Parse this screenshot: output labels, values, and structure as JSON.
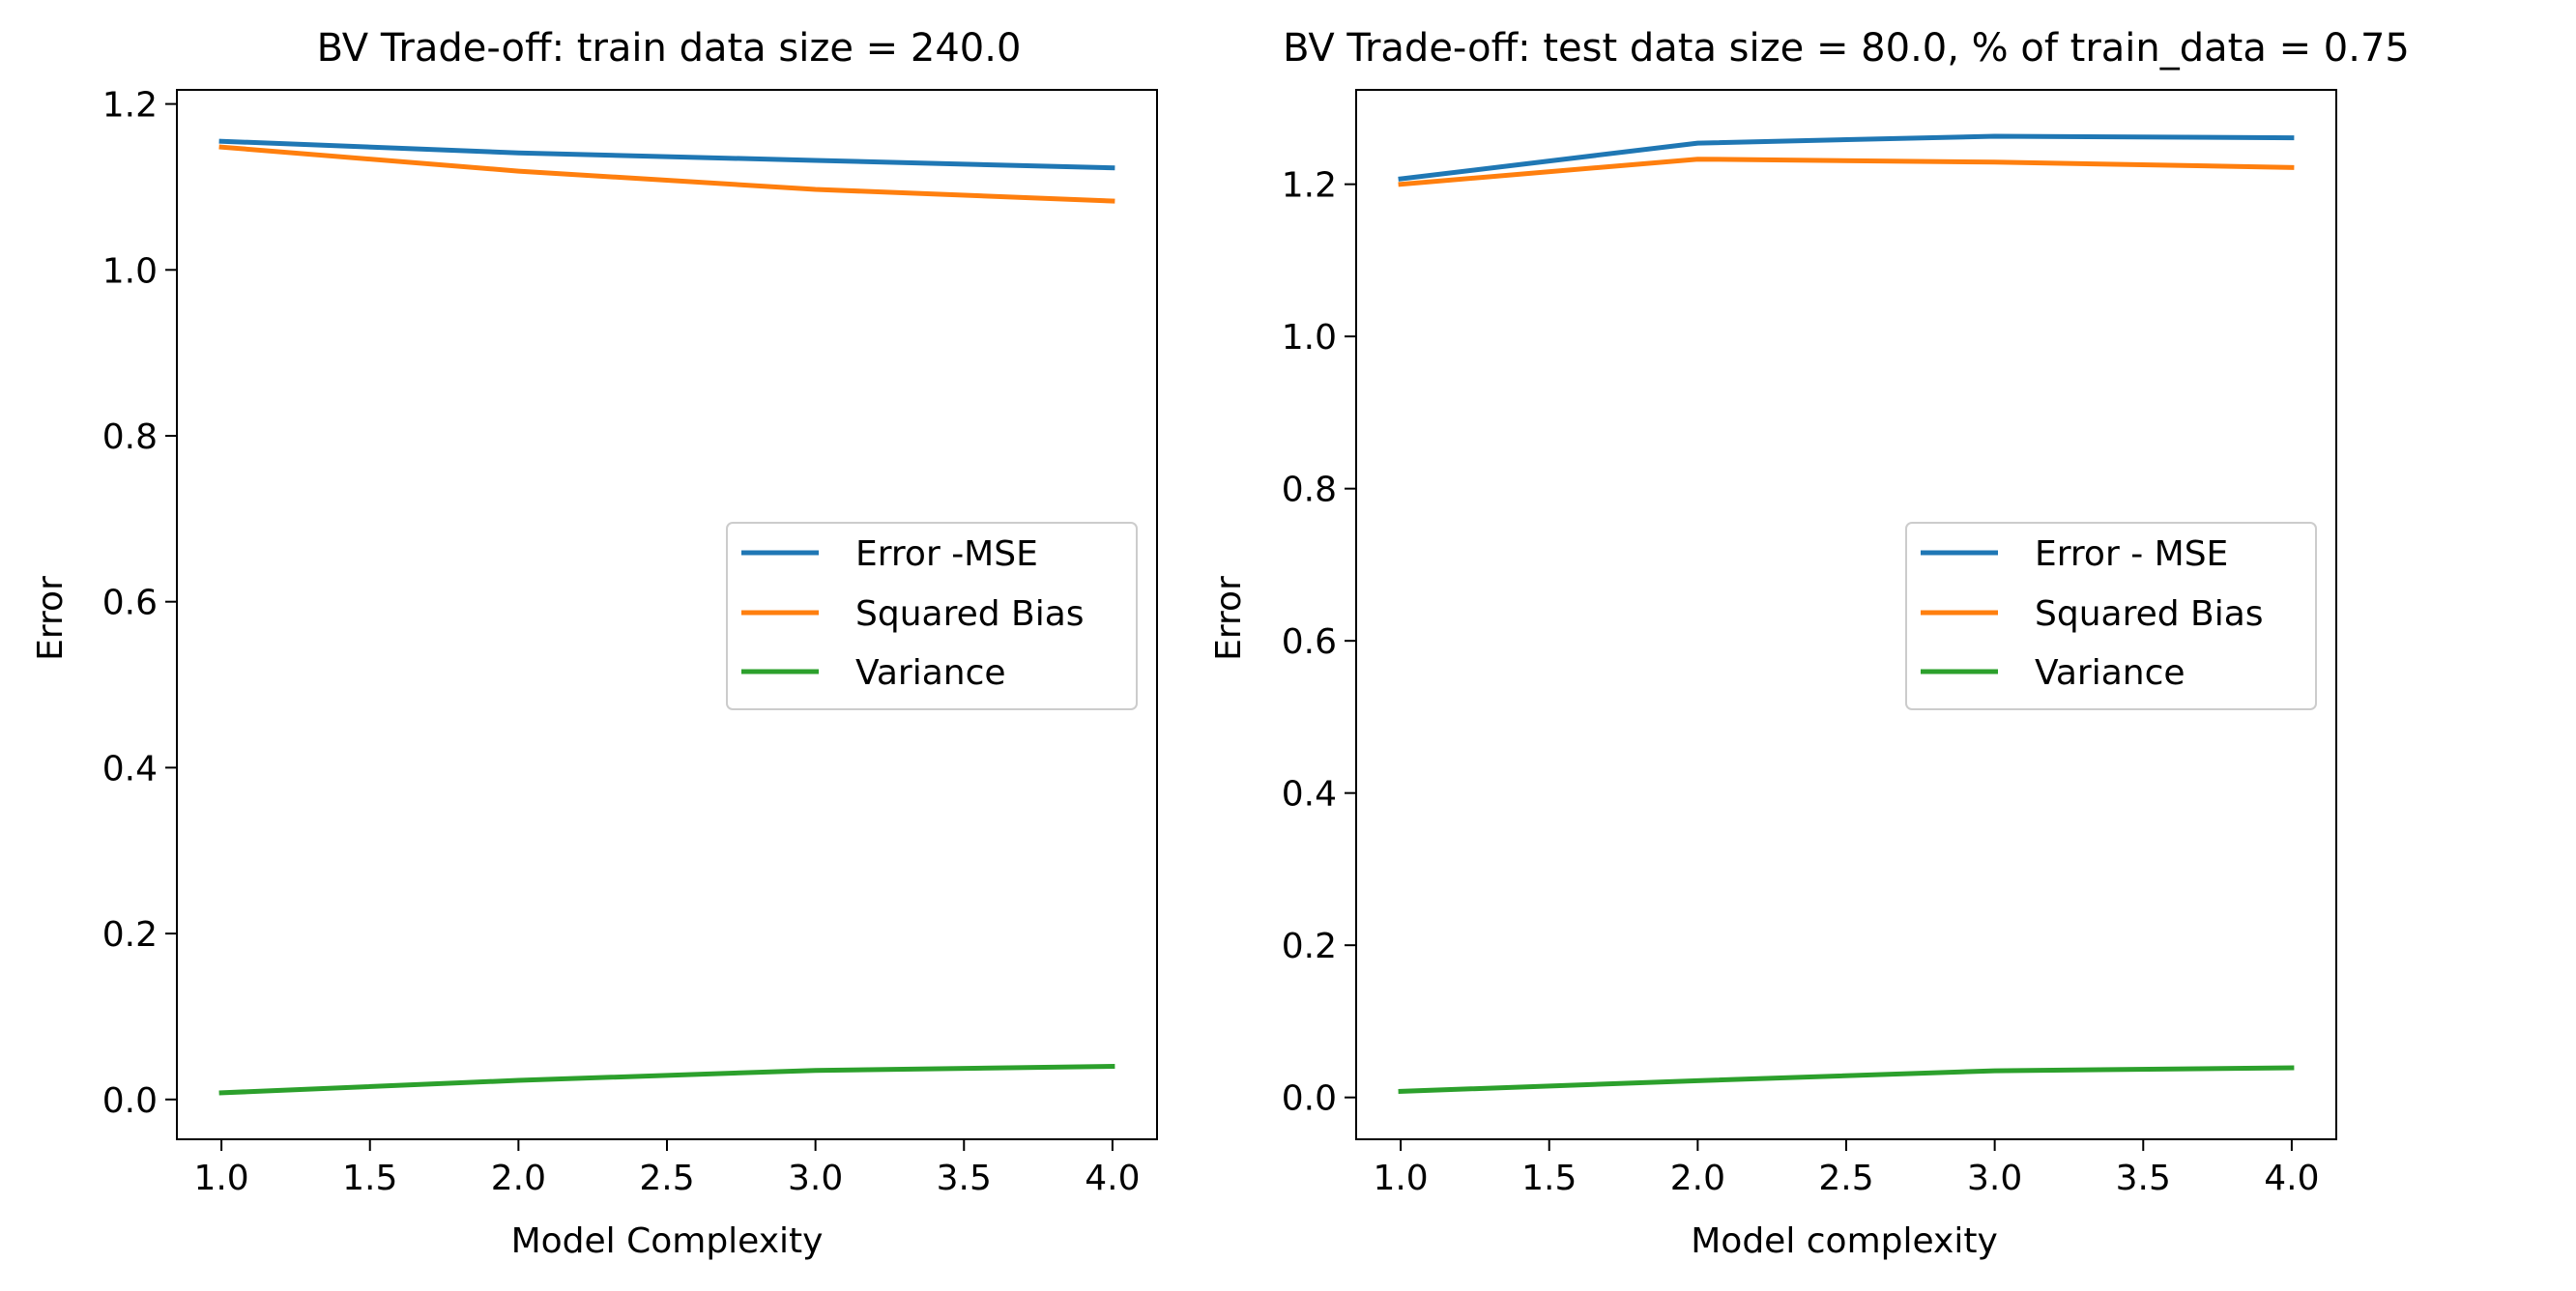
{
  "chart_data": [
    {
      "type": "line",
      "title": "BV Trade-off: train data size = 240.0",
      "xlabel": "Model Complexity",
      "ylabel": "Error",
      "x": [
        1.0,
        2.0,
        3.0,
        4.0
      ],
      "xlim": [
        0.85,
        4.15
      ],
      "ylim": [
        -0.048,
        1.217
      ],
      "xticks": [
        1.0,
        1.5,
        2.0,
        2.5,
        3.0,
        3.5,
        4.0
      ],
      "xtick_labels": [
        "1.0",
        "1.5",
        "2.0",
        "2.5",
        "3.0",
        "3.5",
        "4.0"
      ],
      "yticks": [
        0.0,
        0.2,
        0.4,
        0.6,
        0.8,
        1.0,
        1.2
      ],
      "ytick_labels": [
        "0.0",
        "0.2",
        "0.4",
        "0.6",
        "0.8",
        "1.0",
        "1.2"
      ],
      "grid": false,
      "legend_position": "center-right",
      "series": [
        {
          "name": "Error -MSE",
          "color": "#1f77b4",
          "values": [
            1.155,
            1.141,
            1.132,
            1.123
          ]
        },
        {
          "name": "Squared Bias",
          "color": "#ff7f0e",
          "values": [
            1.148,
            1.119,
            1.097,
            1.083
          ]
        },
        {
          "name": "Variance",
          "color": "#2ca02c",
          "values": [
            0.008,
            0.023,
            0.035,
            0.04
          ]
        }
      ]
    },
    {
      "type": "line",
      "title": "BV Trade-off: test data size = 80.0, % of train_data = 0.75",
      "xlabel": "Model complexity",
      "ylabel": "Error",
      "x": [
        1.0,
        2.0,
        3.0,
        4.0
      ],
      "xlim": [
        0.85,
        4.15
      ],
      "ylim": [
        -0.055,
        1.324
      ],
      "xticks": [
        1.0,
        1.5,
        2.0,
        2.5,
        3.0,
        3.5,
        4.0
      ],
      "xtick_labels": [
        "1.0",
        "1.5",
        "2.0",
        "2.5",
        "3.0",
        "3.5",
        "4.0"
      ],
      "yticks": [
        0.0,
        0.2,
        0.4,
        0.6,
        0.8,
        1.0,
        1.2
      ],
      "ytick_labels": [
        "0.0",
        "0.2",
        "0.4",
        "0.6",
        "0.8",
        "1.0",
        "1.2"
      ],
      "grid": false,
      "legend_position": "center-right",
      "series": [
        {
          "name": "Error - MSE",
          "color": "#1f77b4",
          "values": [
            1.207,
            1.254,
            1.263,
            1.261
          ]
        },
        {
          "name": "Squared Bias",
          "color": "#ff7f0e",
          "values": [
            1.2,
            1.233,
            1.229,
            1.222
          ]
        },
        {
          "name": "Variance",
          "color": "#2ca02c",
          "values": [
            0.008,
            0.022,
            0.035,
            0.039
          ]
        }
      ]
    }
  ]
}
